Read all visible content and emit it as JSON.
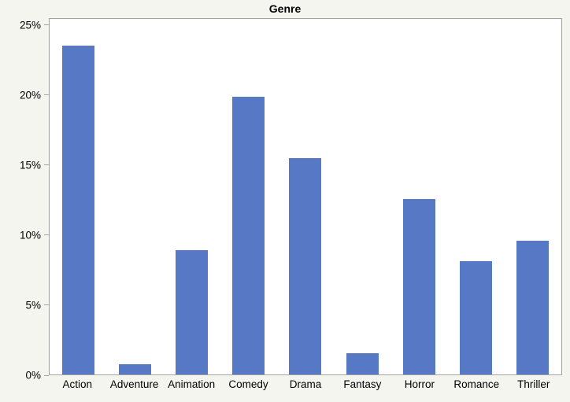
{
  "page": {
    "background": "#f5f5f0"
  },
  "chart_data": {
    "type": "bar",
    "title": "Genre",
    "categories": [
      "Action",
      "Adventure",
      "Animation",
      "Comedy",
      "Drama",
      "Fantasy",
      "Horror",
      "Romance",
      "Thriller"
    ],
    "values": [
      23.6,
      0.75,
      8.9,
      19.9,
      15.5,
      1.5,
      12.6,
      8.1,
      9.6
    ],
    "unit": "%",
    "xlabel": "",
    "ylabel": "",
    "ylim": [
      0,
      25.5
    ],
    "yticks": [
      {
        "value": 0,
        "label": "0%"
      },
      {
        "value": 5,
        "label": "5%"
      },
      {
        "value": 10,
        "label": "10%"
      },
      {
        "value": 15,
        "label": "15%"
      },
      {
        "value": 20,
        "label": "20%"
      },
      {
        "value": 25,
        "label": "25%"
      }
    ],
    "grid": false,
    "legend": "none",
    "bar_color": "#5778c4",
    "plot_background": "#ffffff",
    "page_background": "#f5f5f0",
    "axis_color": "#a3a3a3",
    "text_color": "#000000"
  }
}
